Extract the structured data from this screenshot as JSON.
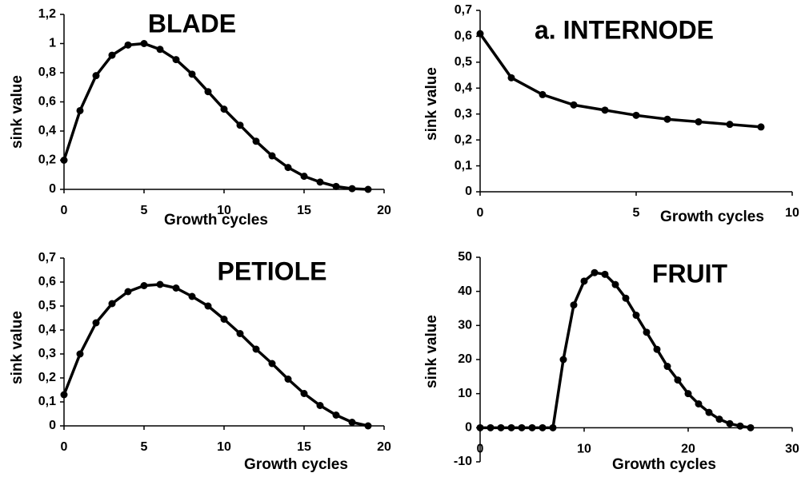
{
  "chart_data": [
    {
      "type": "line",
      "title": "BLADE",
      "x_label": "Growth cycles",
      "y_label": "sink value",
      "x": [
        0,
        1,
        2,
        3,
        4,
        5,
        6,
        7,
        8,
        9,
        10,
        11,
        12,
        13,
        14,
        15,
        16,
        17,
        18,
        19
      ],
      "series": [
        {
          "color": "#000000",
          "values": [
            0.2,
            0.54,
            0.78,
            0.92,
            0.99,
            1.0,
            0.96,
            0.89,
            0.79,
            0.67,
            0.55,
            0.44,
            0.33,
            0.23,
            0.15,
            0.09,
            0.05,
            0.02,
            0.005,
            0
          ]
        }
      ],
      "xlim": [
        0,
        20
      ],
      "xticks": [
        0,
        5,
        10,
        15,
        20
      ],
      "ylim": [
        0,
        1.2
      ],
      "yticks": [
        0,
        {
          "value": 0.2,
          "label": "0,2"
        },
        {
          "value": 0.4,
          "label": "0,4"
        },
        {
          "value": 0.6,
          "label": "0,6"
        },
        {
          "value": 0.8,
          "label": "0,8"
        },
        1,
        {
          "value": 1.2,
          "label": "1,2"
        }
      ]
    },
    {
      "type": "line",
      "title": "a. INTERNODE",
      "x_label": "Growth cycles",
      "y_label": "sink value",
      "x": [
        0,
        1,
        2,
        3,
        4,
        5,
        6,
        7,
        8,
        9
      ],
      "series": [
        {
          "color": "#000000",
          "values": [
            0.61,
            0.44,
            0.375,
            0.335,
            0.315,
            0.295,
            0.28,
            0.27,
            0.26,
            0.25
          ]
        }
      ],
      "xlim": [
        0,
        10
      ],
      "xticks": [
        0,
        5,
        10
      ],
      "ylim": [
        0,
        0.7
      ],
      "yticks": [
        0,
        {
          "value": 0.1,
          "label": "0,1"
        },
        {
          "value": 0.2,
          "label": "0,2"
        },
        {
          "value": 0.3,
          "label": "0,3"
        },
        {
          "value": 0.4,
          "label": "0,4"
        },
        {
          "value": 0.5,
          "label": "0,5"
        },
        {
          "value": 0.6,
          "label": "0,6"
        },
        {
          "value": 0.7,
          "label": "0,7"
        }
      ]
    },
    {
      "type": "line",
      "title": "PETIOLE",
      "x_label": "Growth cycles",
      "y_label": "sink value",
      "x": [
        0,
        1,
        2,
        3,
        4,
        5,
        6,
        7,
        8,
        9,
        10,
        11,
        12,
        13,
        14,
        15,
        16,
        17,
        18,
        19
      ],
      "series": [
        {
          "color": "#000000",
          "values": [
            0.13,
            0.3,
            0.43,
            0.51,
            0.56,
            0.585,
            0.59,
            0.575,
            0.54,
            0.5,
            0.445,
            0.385,
            0.32,
            0.26,
            0.195,
            0.135,
            0.085,
            0.045,
            0.015,
            0
          ]
        }
      ],
      "xlim": [
        0,
        20
      ],
      "xticks": [
        0,
        5,
        10,
        15,
        20
      ],
      "ylim": [
        0,
        0.7
      ],
      "yticks": [
        0,
        {
          "value": 0.1,
          "label": "0,1"
        },
        {
          "value": 0.2,
          "label": "0,2"
        },
        {
          "value": 0.3,
          "label": "0,3"
        },
        {
          "value": 0.4,
          "label": "0,4"
        },
        {
          "value": 0.5,
          "label": "0,5"
        },
        {
          "value": 0.6,
          "label": "0,6"
        },
        {
          "value": 0.7,
          "label": "0,7"
        }
      ]
    },
    {
      "type": "line",
      "title": "FRUIT",
      "x_label": "Growth cycles",
      "y_label": "sink value",
      "x": [
        0,
        1,
        2,
        3,
        4,
        5,
        6,
        7,
        8,
        9,
        10,
        11,
        12,
        13,
        14,
        15,
        16,
        17,
        18,
        19,
        20,
        21,
        22,
        23,
        24,
        25,
        26
      ],
      "series": [
        {
          "color": "#000000",
          "values": [
            0,
            0,
            0,
            0,
            0,
            0,
            0,
            0,
            20,
            36,
            43,
            45.5,
            45,
            42,
            38,
            33,
            28,
            23,
            18,
            14,
            10,
            7,
            4.5,
            2.5,
            1.2,
            0.5,
            0
          ]
        }
      ],
      "xlim": [
        0,
        30
      ],
      "xticks": [
        0,
        10,
        20,
        30
      ],
      "ylim": [
        -10,
        50
      ],
      "yticks": [
        -10,
        0,
        10,
        20,
        30,
        40,
        50
      ]
    }
  ]
}
